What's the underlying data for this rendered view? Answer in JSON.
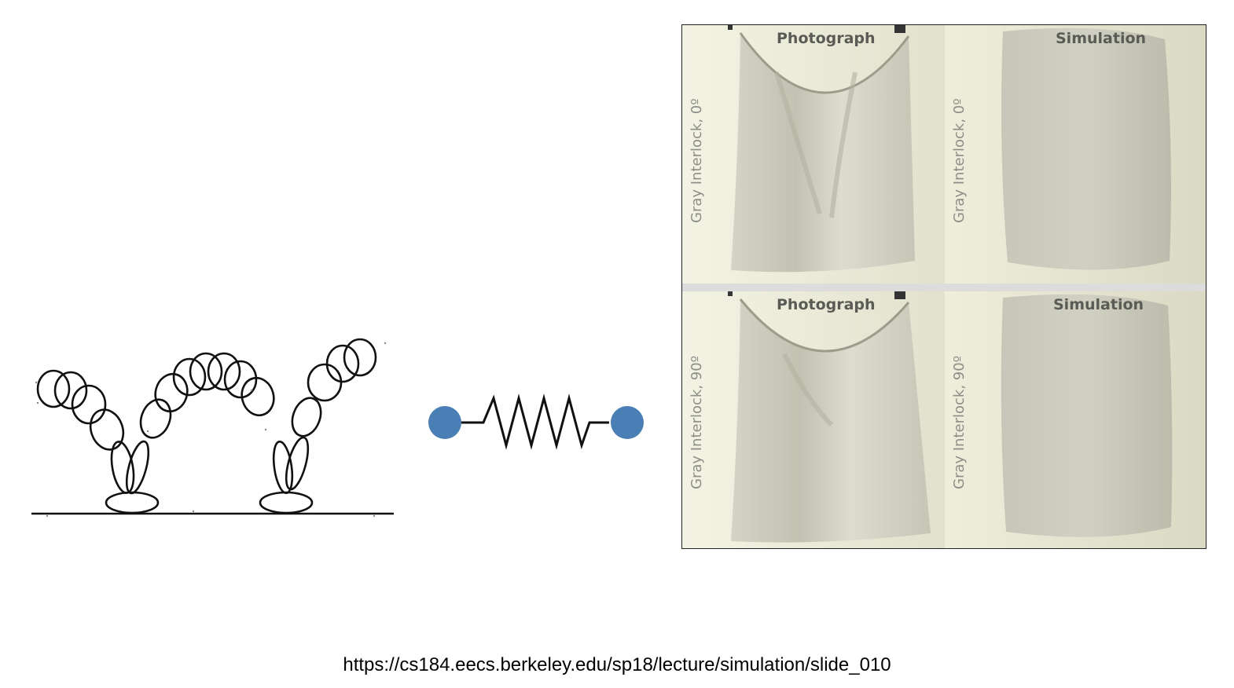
{
  "figure": {
    "rows": [
      {
        "photo_title": "Photograph",
        "sim_title": "Simulation",
        "side_label": "Gray Interlock, 0º"
      },
      {
        "photo_title": "Photograph",
        "sim_title": "Simulation",
        "side_label": "Gray Interlock, 90º"
      }
    ]
  },
  "colors": {
    "spring_mass": "#4a7fb5",
    "cloth": "#cfcfc0",
    "backdrop": "#ecebd8"
  },
  "source": {
    "url": "https://cs184.eecs.berkeley.edu/sp18/lecture/simulation/slide_010"
  }
}
